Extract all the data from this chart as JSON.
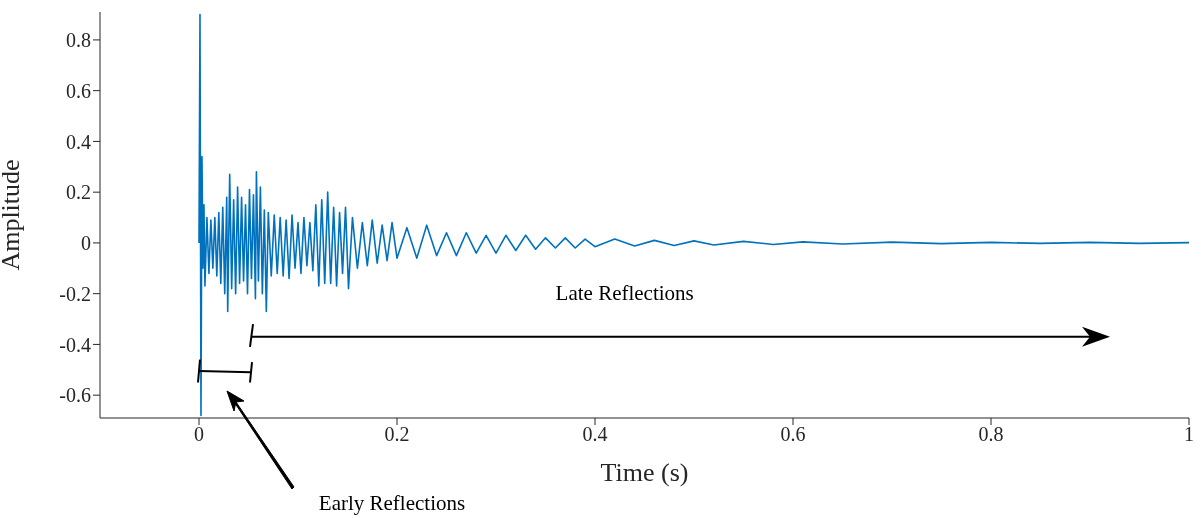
{
  "chart_data": {
    "type": "line",
    "xlabel": "Time (s)",
    "ylabel": "Amplitude",
    "xlim": [
      -0.1,
      1.0
    ],
    "xticks": [
      0,
      0.2,
      0.4,
      0.6,
      0.8,
      1
    ],
    "ylim": [
      -0.69,
      0.91
    ],
    "yticks": [
      -0.6,
      -0.4,
      -0.2,
      0,
      0.2,
      0.4,
      0.6,
      0.8
    ],
    "marker": "none",
    "line_style": "solid",
    "annotations": [
      "Late Reflections",
      "Early Reflections"
    ],
    "series": [
      {
        "color": "#0072bd",
        "x": [
          0,
          0.001,
          0.002,
          0.003,
          0.004,
          0.005,
          0.006,
          0.008,
          0.01,
          0.012,
          0.014,
          0.016,
          0.018,
          0.02,
          0.022,
          0.024,
          0.026,
          0.028,
          0.029,
          0.031,
          0.033,
          0.035,
          0.037,
          0.039,
          0.041,
          0.043,
          0.045,
          0.047,
          0.049,
          0.051,
          0.053,
          0.055,
          0.057,
          0.058,
          0.06,
          0.062,
          0.064,
          0.066,
          0.068,
          0.07,
          0.073,
          0.076,
          0.079,
          0.082,
          0.085,
          0.088,
          0.091,
          0.094,
          0.097,
          0.1,
          0.103,
          0.106,
          0.109,
          0.112,
          0.115,
          0.118,
          0.121,
          0.124,
          0.127,
          0.13,
          0.133,
          0.136,
          0.139,
          0.142,
          0.145,
          0.148,
          0.151,
          0.155,
          0.16,
          0.165,
          0.17,
          0.175,
          0.18,
          0.185,
          0.19,
          0.195,
          0.2,
          0.21,
          0.22,
          0.23,
          0.24,
          0.25,
          0.26,
          0.27,
          0.28,
          0.29,
          0.3,
          0.31,
          0.32,
          0.33,
          0.34,
          0.35,
          0.36,
          0.37,
          0.38,
          0.39,
          0.4,
          0.42,
          0.44,
          0.46,
          0.48,
          0.5,
          0.52,
          0.55,
          0.58,
          0.61,
          0.65,
          0.7,
          0.75,
          0.8,
          0.85,
          0.9,
          0.95,
          1.0
        ],
        "values": [
          0,
          0.9,
          -0.68,
          0.34,
          -0.1,
          0.15,
          -0.17,
          0.1,
          -0.12,
          0.09,
          -0.1,
          0.1,
          -0.13,
          0.12,
          -0.16,
          0.14,
          -0.2,
          0.18,
          -0.27,
          0.27,
          -0.18,
          0.17,
          -0.2,
          0.22,
          -0.16,
          0.18,
          -0.15,
          0.15,
          -0.2,
          0.21,
          -0.14,
          0.19,
          -0.22,
          0.28,
          -0.15,
          0.22,
          -0.2,
          0.13,
          -0.27,
          0.12,
          -0.13,
          0.11,
          -0.12,
          0.1,
          -0.13,
          0.09,
          -0.14,
          0.11,
          -0.1,
          0.08,
          -0.12,
          0.1,
          -0.09,
          0.08,
          -0.11,
          0.15,
          -0.17,
          0.17,
          -0.16,
          0.2,
          -0.16,
          0.14,
          -0.17,
          0.12,
          -0.12,
          0.14,
          -0.18,
          0.1,
          -0.1,
          0.08,
          -0.09,
          0.09,
          -0.08,
          0.07,
          -0.07,
          0.08,
          -0.06,
          0.06,
          -0.06,
          0.07,
          -0.05,
          0.04,
          -0.05,
          0.04,
          -0.04,
          0.03,
          -0.04,
          0.03,
          -0.03,
          0.03,
          -0.025,
          0.02,
          -0.02,
          0.02,
          -0.02,
          0.015,
          -0.015,
          0.015,
          -0.012,
          0.01,
          -0.01,
          0.008,
          -0.008,
          0.006,
          -0.006,
          0.004,
          -0.004,
          0.003,
          -0.003,
          0.002,
          -0.002,
          0.002,
          -0.002,
          0.001
        ]
      }
    ]
  }
}
